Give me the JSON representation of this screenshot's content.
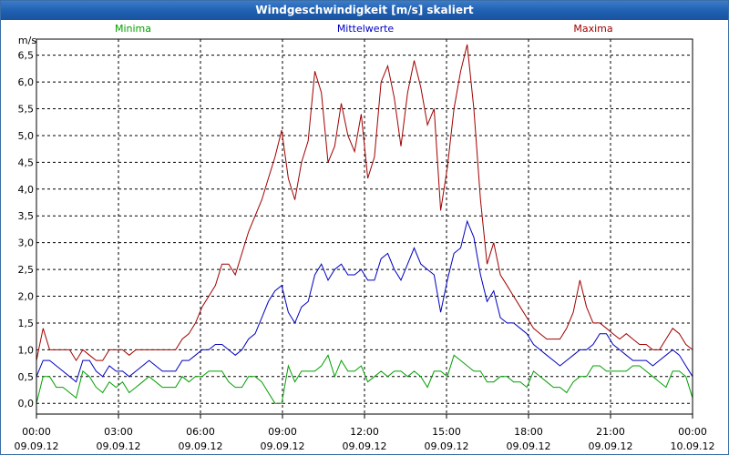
{
  "window": {
    "title": "Windgeschwindigkeit [m/s] skaliert"
  },
  "colors": {
    "min": "#00a000",
    "mean": "#0000c0",
    "max": "#a00000",
    "title_bg": "#1f5fb0"
  },
  "chart_data": {
    "type": "line",
    "title": "Windgeschwindigkeit [m/s] skaliert",
    "ylabel": "m/s",
    "ylim": [
      -0.2,
      6.8
    ],
    "y_ticks": [
      "0,0",
      "0,5",
      "1,0",
      "1,5",
      "2,0",
      "2,5",
      "3,0",
      "3,5",
      "4,0",
      "4,5",
      "5,0",
      "5,5",
      "6,0",
      "6,5"
    ],
    "x_ticks": [
      {
        "time": "00:00",
        "date": "09.09.12"
      },
      {
        "time": "03:00",
        "date": "09.09.12"
      },
      {
        "time": "06:00",
        "date": "09.09.12"
      },
      {
        "time": "09:00",
        "date": "09.09.12"
      },
      {
        "time": "12:00",
        "date": "09.09.12"
      },
      {
        "time": "15:00",
        "date": "09.09.12"
      },
      {
        "time": "18:00",
        "date": "09.09.12"
      },
      {
        "time": "21:00",
        "date": "09.09.12"
      },
      {
        "time": "00:00",
        "date": "10.09.12"
      }
    ],
    "grid": true,
    "series": [
      {
        "name": "Minima",
        "color": "#00a000",
        "values": [
          0,
          0.5,
          0.5,
          0.3,
          0.3,
          0.2,
          0.1,
          0.6,
          0.5,
          0.3,
          0.2,
          0.4,
          0.3,
          0.4,
          0.2,
          0.3,
          0.4,
          0.5,
          0.4,
          0.3,
          0.3,
          0.3,
          0.5,
          0.4,
          0.5,
          0.5,
          0.6,
          0.6,
          0.6,
          0.4,
          0.3,
          0.3,
          0.5,
          0.5,
          0.4,
          0.2,
          0,
          0,
          0.7,
          0.4,
          0.6,
          0.6,
          0.6,
          0.7,
          0.9,
          0.5,
          0.8,
          0.6,
          0.6,
          0.7,
          0.4,
          0.5,
          0.6,
          0.5,
          0.6,
          0.6,
          0.5,
          0.6,
          0.5,
          0.3,
          0.6,
          0.6,
          0.5,
          0.9,
          0.8,
          0.7,
          0.6,
          0.6,
          0.4,
          0.4,
          0.5,
          0.5,
          0.4,
          0.4,
          0.3,
          0.6,
          0.5,
          0.4,
          0.3,
          0.3,
          0.2,
          0.4,
          0.5,
          0.5,
          0.7,
          0.7,
          0.6,
          0.6,
          0.6,
          0.6,
          0.7,
          0.7,
          0.6,
          0.5,
          0.4,
          0.3,
          0.6,
          0.6,
          0.5,
          0.1
        ]
      },
      {
        "name": "Mittelwerte",
        "color": "#0000c0",
        "values": [
          0.5,
          0.8,
          0.8,
          0.7,
          0.6,
          0.5,
          0.4,
          0.8,
          0.8,
          0.6,
          0.5,
          0.7,
          0.6,
          0.6,
          0.5,
          0.6,
          0.7,
          0.8,
          0.7,
          0.6,
          0.6,
          0.6,
          0.8,
          0.8,
          0.9,
          1,
          1,
          1.1,
          1.1,
          1,
          0.9,
          1,
          1.2,
          1.3,
          1.6,
          1.9,
          2.1,
          2.2,
          1.7,
          1.5,
          1.8,
          1.9,
          2.4,
          2.6,
          2.3,
          2.5,
          2.6,
          2.4,
          2.4,
          2.5,
          2.3,
          2.3,
          2.7,
          2.8,
          2.5,
          2.3,
          2.6,
          2.9,
          2.6,
          2.5,
          2.4,
          1.7,
          2.3,
          2.8,
          2.9,
          3.4,
          3.1,
          2.4,
          1.9,
          2.1,
          1.6,
          1.5,
          1.5,
          1.4,
          1.3,
          1.1,
          1,
          0.9,
          0.8,
          0.7,
          0.8,
          0.9,
          1,
          1,
          1.1,
          1.3,
          1.3,
          1.1,
          1,
          0.9,
          0.8,
          0.8,
          0.8,
          0.7,
          0.8,
          0.9,
          1,
          0.9,
          0.7,
          0.5
        ]
      },
      {
        "name": "Maxima",
        "color": "#a00000",
        "values": [
          0.8,
          1.4,
          1,
          1,
          1,
          1,
          0.8,
          1,
          0.9,
          0.8,
          0.8,
          1,
          1,
          1,
          0.9,
          1,
          1,
          1,
          1,
          1,
          1,
          1,
          1.2,
          1.3,
          1.5,
          1.8,
          2,
          2.2,
          2.6,
          2.6,
          2.4,
          2.8,
          3.2,
          3.5,
          3.8,
          4.2,
          4.6,
          5.1,
          4.2,
          3.8,
          4.5,
          4.9,
          6.2,
          5.8,
          4.5,
          4.8,
          5.6,
          5,
          4.7,
          5.4,
          4.2,
          4.6,
          6,
          6.3,
          5.7,
          4.8,
          5.8,
          6.4,
          5.9,
          5.2,
          5.5,
          3.6,
          4.4,
          5.5,
          6.2,
          6.7,
          5.5,
          3.8,
          2.6,
          3,
          2.4,
          2.2,
          2,
          1.8,
          1.6,
          1.4,
          1.3,
          1.2,
          1.2,
          1.2,
          1.4,
          1.7,
          2.3,
          1.8,
          1.5,
          1.5,
          1.4,
          1.3,
          1.2,
          1.3,
          1.2,
          1.1,
          1.1,
          1,
          1,
          1.2,
          1.4,
          1.3,
          1.1,
          1
        ]
      }
    ]
  }
}
